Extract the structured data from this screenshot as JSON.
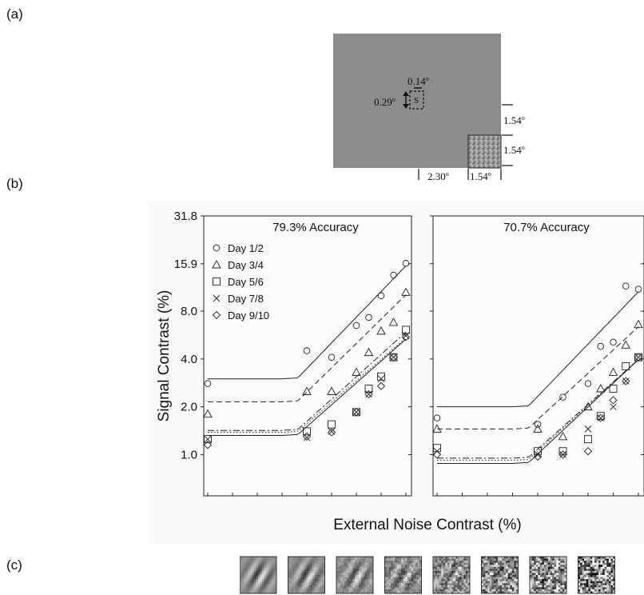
{
  "panel_labels": {
    "a": "(a)",
    "b": "(b)",
    "c": "(c)"
  },
  "stimulus_diagram": {
    "dim_signal_width": "0.14",
    "dim_signal_height": "0.29",
    "dim_offset_vertical": "1.54",
    "dim_noise_height": "1.54",
    "dim_offset_horizontal": "2.30",
    "dim_noise_width": "1.54",
    "degree_mark": "o",
    "signal_label": "S",
    "background_color": "#8c8c8c"
  },
  "chart_data": [
    {
      "type": "scatter",
      "title": "79.3% Accuracy",
      "xlabel": "External Noise Contrast (%)",
      "ylabel": "Signal Contrast (%)",
      "y_scale": "log",
      "ylim": [
        0.55,
        31.8
      ],
      "yticks": [
        "31.8",
        "15.9",
        "8.0",
        "4.0",
        "2.0",
        "1.0"
      ],
      "ytick_values": [
        31.8,
        15.9,
        8.0,
        4.0,
        2.0,
        1.0
      ],
      "x_levels": [
        0,
        1,
        2,
        3,
        4,
        5,
        6,
        7,
        8
      ],
      "legend_position": "upper-left",
      "series": [
        {
          "name": "Day 1/2",
          "marker": "circle",
          "line": "solid",
          "x": [
            0,
            4,
            5,
            6,
            6.5,
            7,
            7.5,
            8
          ],
          "y": [
            2.8,
            4.5,
            4.1,
            6.5,
            7.3,
            10.0,
            13.5,
            16.0
          ]
        },
        {
          "name": "Day 3/4",
          "marker": "triangle",
          "line": "dashed",
          "x": [
            0,
            4,
            5,
            6,
            6.5,
            7,
            7.5,
            8
          ],
          "y": [
            1.8,
            2.5,
            2.5,
            3.3,
            4.4,
            6.0,
            6.8,
            10.5
          ]
        },
        {
          "name": "Day 5/6",
          "marker": "square",
          "line": "dashdot",
          "x": [
            0,
            4,
            5,
            6,
            6.5,
            7,
            7.5,
            8
          ],
          "y": [
            1.25,
            1.4,
            1.55,
            1.85,
            2.6,
            3.1,
            4.1,
            6.1
          ]
        },
        {
          "name": "Day 7/8",
          "marker": "x",
          "line": "dotted",
          "x": [
            0,
            4,
            5,
            6,
            6.5,
            7,
            7.5,
            8
          ],
          "y": [
            1.25,
            1.28,
            1.4,
            1.85,
            2.4,
            3.0,
            4.1,
            5.6
          ]
        },
        {
          "name": "Day 9/10",
          "marker": "diamond",
          "line": "solid",
          "x": [
            0,
            4,
            5,
            6,
            6.5,
            7,
            7.5,
            8
          ],
          "y": [
            1.15,
            1.3,
            1.38,
            1.85,
            2.4,
            2.7,
            4.1,
            5.5
          ]
        }
      ],
      "fit_floor": [
        3.0,
        2.15,
        1.42,
        1.38,
        1.32
      ]
    },
    {
      "type": "scatter",
      "title": "70.7% Accuracy",
      "xlabel": "External Noise Contrast (%)",
      "ylabel": "Signal Contrast (%)",
      "y_scale": "log",
      "ylim": [
        0.55,
        31.8
      ],
      "x_levels": [
        0,
        1,
        2,
        3,
        4,
        5,
        6,
        7,
        8
      ],
      "series": [
        {
          "name": "Day 1/2",
          "marker": "circle",
          "line": "solid",
          "x": [
            0,
            4,
            5,
            6,
            6.5,
            7,
            7.5,
            8
          ],
          "y": [
            1.7,
            1.55,
            2.3,
            2.8,
            4.8,
            5.1,
            11.5,
            11.0
          ]
        },
        {
          "name": "Day 3/4",
          "marker": "triangle",
          "line": "dashed",
          "x": [
            0,
            4,
            5,
            6,
            6.5,
            7,
            7.5,
            8
          ],
          "y": [
            1.45,
            1.45,
            1.3,
            2.0,
            2.6,
            3.3,
            4.9,
            6.6
          ]
        },
        {
          "name": "Day 5/6",
          "marker": "square",
          "line": "dashdot",
          "x": [
            0,
            4,
            5,
            6,
            6.5,
            7,
            7.5,
            8
          ],
          "y": [
            1.1,
            1.05,
            1.05,
            1.25,
            1.75,
            2.6,
            3.6,
            4.1
          ]
        },
        {
          "name": "Day 7/8",
          "marker": "x",
          "line": "dotted",
          "x": [
            0,
            4,
            5,
            6,
            6.5,
            7,
            7.5,
            8
          ],
          "y": [
            1.05,
            1.0,
            1.0,
            1.45,
            1.7,
            2.0,
            2.9,
            4.1
          ]
        },
        {
          "name": "Day 9/10",
          "marker": "diamond",
          "line": "solid",
          "x": [
            0,
            4,
            5,
            6,
            6.5,
            7,
            7.5,
            8
          ],
          "y": [
            1.0,
            0.97,
            1.0,
            1.05,
            1.7,
            2.2,
            2.9,
            4.1
          ]
        }
      ],
      "fit_floor": [
        2.0,
        1.45,
        0.95,
        0.92,
        0.88
      ]
    }
  ],
  "noise_samples": {
    "count": 8,
    "noise_levels": [
      0.0,
      0.08,
      0.16,
      0.3,
      0.5,
      0.7,
      0.9,
      1.1
    ]
  }
}
